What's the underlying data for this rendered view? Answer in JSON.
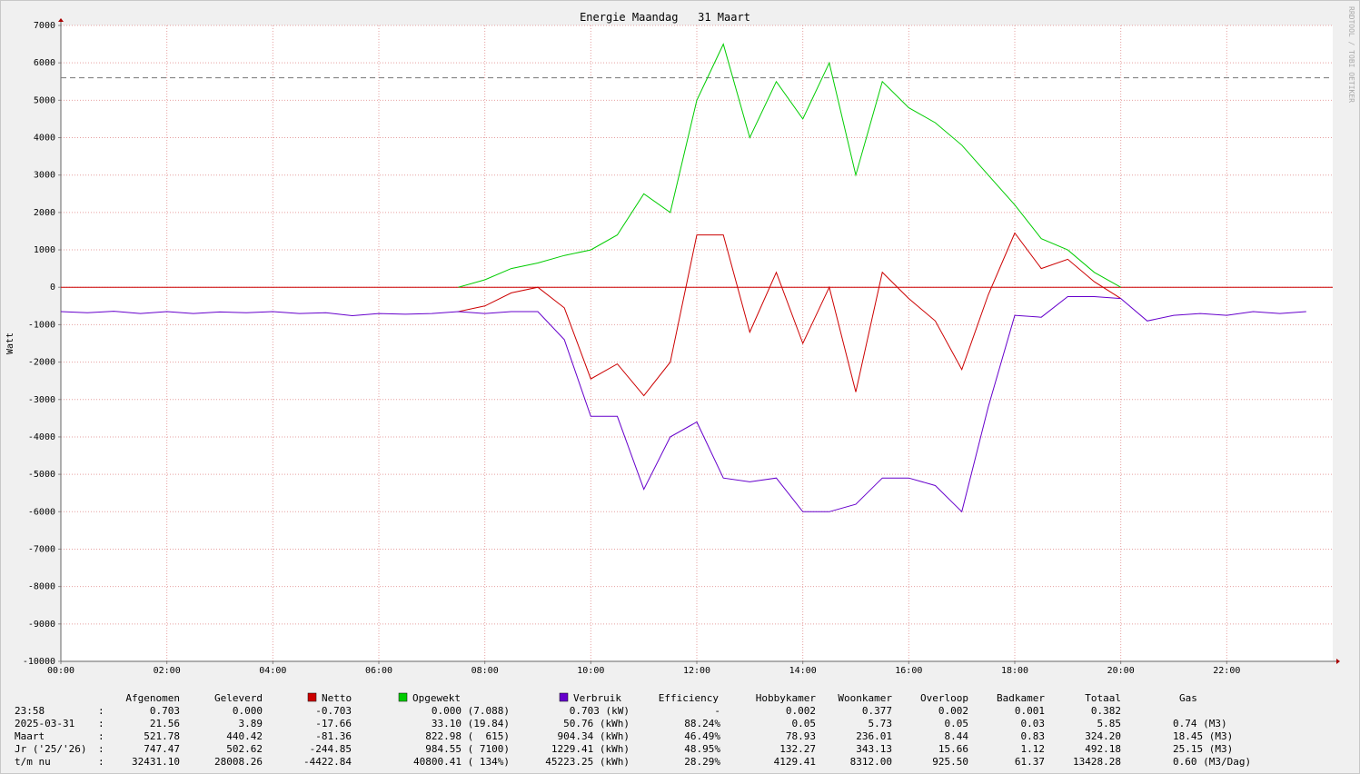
{
  "chart_data": {
    "type": "line",
    "title": "Energie Maandag   31 Maart",
    "y_label": "Watt",
    "watermark": "RRDTOOL / TOBI OETIKER",
    "x": [
      0,
      0.5,
      1,
      1.5,
      2,
      2.5,
      3,
      3.5,
      4,
      4.5,
      5,
      5.5,
      6,
      6.5,
      7,
      7.5,
      8,
      8.5,
      9,
      9.5,
      10,
      10.5,
      11,
      11.5,
      12,
      12.5,
      13,
      13.5,
      14,
      14.5,
      15,
      15.5,
      16,
      16.5,
      17,
      17.5,
      18,
      18.5,
      19,
      19.5,
      20,
      20.5,
      21,
      21.5,
      22,
      22.5,
      23,
      23.5
    ],
    "series": [
      {
        "name": "Netto",
        "color": "#cc0000",
        "values": [
          null,
          null,
          null,
          null,
          null,
          null,
          null,
          null,
          null,
          null,
          null,
          null,
          null,
          null,
          null,
          -650,
          -500,
          -150,
          0,
          -550,
          -2450,
          -2050,
          -2900,
          -2000,
          1400,
          1400,
          -1200,
          400,
          -1500,
          0,
          -2800,
          400,
          -300,
          -900,
          -2200,
          -200,
          1450,
          500,
          750,
          150,
          -300,
          null,
          null,
          null,
          null,
          null,
          null,
          null
        ]
      },
      {
        "name": "Opgewekt",
        "color": "#00cc00",
        "values": [
          null,
          null,
          null,
          null,
          null,
          null,
          null,
          null,
          null,
          null,
          null,
          null,
          null,
          null,
          null,
          0,
          200,
          500,
          650,
          850,
          1000,
          1400,
          2500,
          2000,
          5000,
          6500,
          4000,
          5500,
          4500,
          6000,
          3000,
          5500,
          4800,
          4400,
          3800,
          3000,
          2200,
          1300,
          1000,
          400,
          0,
          null,
          null,
          null,
          null,
          null,
          null,
          null
        ]
      },
      {
        "name": "Verbruik",
        "color": "#6600cc",
        "values": [
          -650,
          -680,
          -640,
          -700,
          -650,
          -700,
          -660,
          -680,
          -650,
          -700,
          -680,
          -760,
          -700,
          -720,
          -700,
          -650,
          -700,
          -650,
          -650,
          -1400,
          -3450,
          -3450,
          -5400,
          -4000,
          -3600,
          -5100,
          -5200,
          -5100,
          -6000,
          -6000,
          -5800,
          -5100,
          -5100,
          -5300,
          -6000,
          -3200,
          -750,
          -800,
          -250,
          -250,
          -300,
          -900,
          -750,
          -700,
          -750,
          -650,
          -700,
          -650
        ]
      }
    ],
    "reference_line": 5600,
    "xlim": [
      0,
      24
    ],
    "xticks": [
      {
        "value": 0,
        "label": "00:00"
      },
      {
        "value": 2,
        "label": "02:00"
      },
      {
        "value": 4,
        "label": "04:00"
      },
      {
        "value": 6,
        "label": "06:00"
      },
      {
        "value": 8,
        "label": "08:00"
      },
      {
        "value": 10,
        "label": "10:00"
      },
      {
        "value": 12,
        "label": "12:00"
      },
      {
        "value": 14,
        "label": "14:00"
      },
      {
        "value": 16,
        "label": "16:00"
      },
      {
        "value": 18,
        "label": "18:00"
      },
      {
        "value": 20,
        "label": "20:00"
      },
      {
        "value": 22,
        "label": "22:00"
      }
    ],
    "ylim": [
      -10000,
      7000
    ],
    "yticks": [
      -10000,
      -9000,
      -8000,
      -7000,
      -6000,
      -5000,
      -4000,
      -3000,
      -2000,
      -1000,
      0,
      1000,
      2000,
      3000,
      4000,
      5000,
      6000,
      7000
    ],
    "grid": true
  },
  "table": {
    "headers": [
      "Afgenomen",
      "Geleverd",
      "Netto",
      "Opgewekt",
      "Verbruik",
      "Efficiency",
      "Hobbykamer",
      "Woonkamer",
      "Overloop",
      "Badkamer",
      "Totaal",
      "Gas"
    ],
    "separator": ":",
    "rows": [
      {
        "label": "23:58",
        "cells": [
          "0.703",
          "0.000",
          "-0.703",
          "0.000 (7.088)",
          "0.703 (kW)",
          "-",
          "0.002",
          "0.377",
          "0.002",
          "0.001",
          "0.382"
        ]
      },
      {
        "label": "2025-03-31",
        "cells": [
          "21.56",
          "3.89",
          "-17.66",
          "33.10 (19.84)",
          "50.76 (kWh)",
          "88.24%",
          "0.05",
          "5.73",
          "0.05",
          "0.03",
          "5.85",
          "0.74 (M3)"
        ]
      },
      {
        "label": "Maart",
        "cells": [
          "521.78",
          "440.42",
          "-81.36",
          "822.98 (  615)",
          "904.34 (kWh)",
          "46.49%",
          "78.93",
          "236.01",
          "8.44",
          "0.83",
          "324.20",
          "18.45 (M3)"
        ]
      },
      {
        "label": "Jr ('25/'26)",
        "cells": [
          "747.47",
          "502.62",
          "-244.85",
          "984.55 ( 7100)",
          "1229.41 (kWh)",
          "48.95%",
          "132.27",
          "343.13",
          "15.66",
          "1.12",
          "492.18",
          "25.15 (M3)"
        ]
      },
      {
        "label": "t/m nu",
        "cells": [
          "32431.10",
          "28008.26",
          "-4422.84",
          "40800.41 ( 134%)",
          "45223.25 (kWh)",
          "28.29%",
          "4129.41",
          "8312.00",
          "925.50",
          "61.37",
          "13428.28",
          "0.60 (M3/Dag)"
        ]
      }
    ]
  }
}
